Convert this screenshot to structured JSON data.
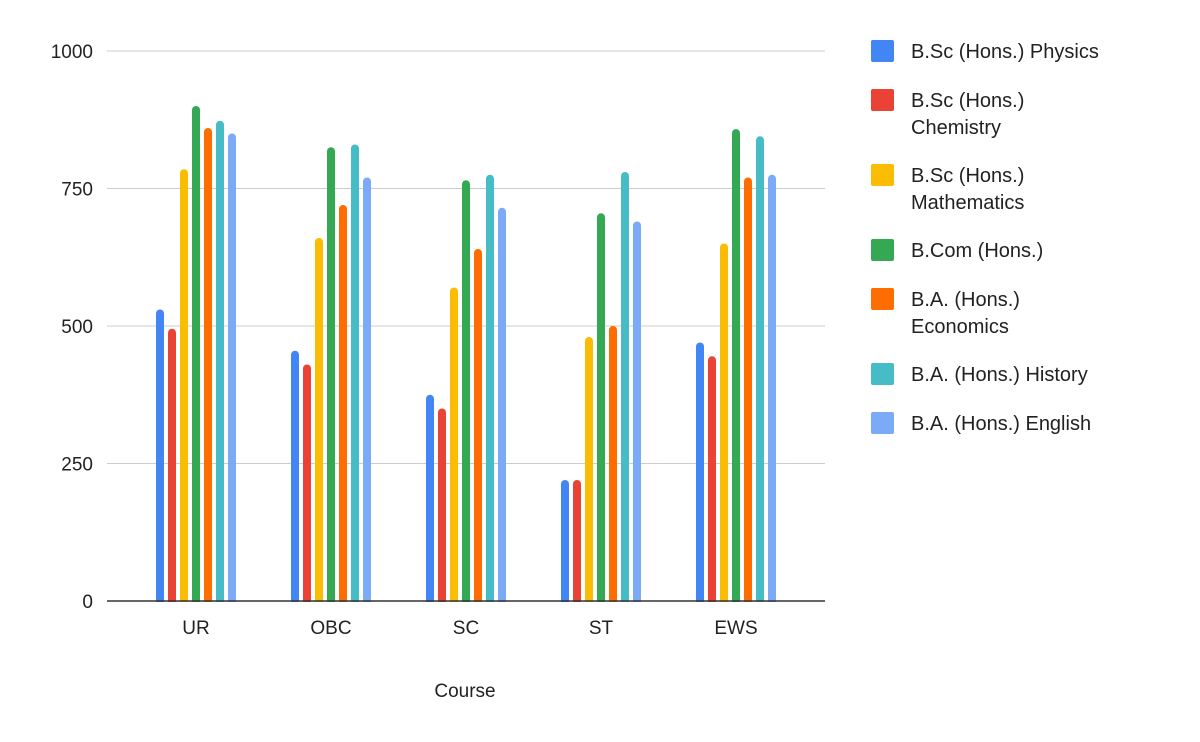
{
  "chart_data": {
    "type": "bar",
    "title": "",
    "xlabel": "Course",
    "ylabel": "",
    "ylim": [
      0,
      1000
    ],
    "yticks": [
      0,
      250,
      500,
      750,
      1000
    ],
    "grid": true,
    "legend_position": "right",
    "categories": [
      "UR",
      "OBC",
      "SC",
      "ST",
      "EWS"
    ],
    "series": [
      {
        "name": "B.Sc (Hons.) Physics",
        "color": "#4285f4",
        "values": [
          530,
          455,
          375,
          220,
          470
        ]
      },
      {
        "name": "B.Sc (Hons.) Chemistry",
        "color": "#ea4335",
        "values": [
          495,
          430,
          350,
          220,
          445
        ]
      },
      {
        "name": "B.Sc (Hons.) Mathematics",
        "color": "#fbbc04",
        "values": [
          785,
          660,
          570,
          480,
          650
        ]
      },
      {
        "name": "B.Com (Hons.)",
        "color": "#34a853",
        "values": [
          900,
          825,
          765,
          705,
          858
        ]
      },
      {
        "name": "B.A. (Hons.) Economics",
        "color": "#ff6d01",
        "values": [
          860,
          720,
          640,
          500,
          770
        ]
      },
      {
        "name": "B.A. (Hons.) History",
        "color": "#46bdc6",
        "values": [
          873,
          830,
          775,
          780,
          845
        ]
      },
      {
        "name": "B.A. (Hons.) English",
        "color": "#7baaf7",
        "values": [
          850,
          770,
          715,
          690,
          775
        ]
      }
    ]
  }
}
